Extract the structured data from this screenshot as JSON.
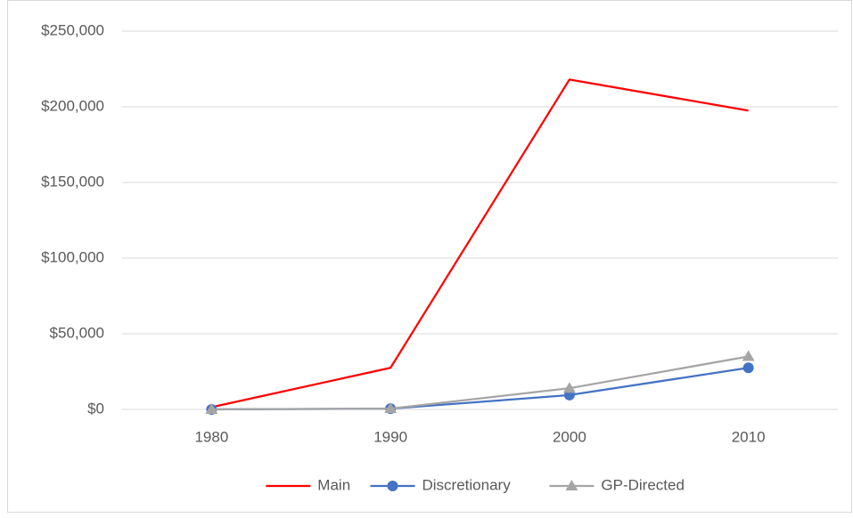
{
  "chart_data": {
    "type": "line",
    "categories": [
      "1980",
      "1990",
      "2000",
      "2010"
    ],
    "series": [
      {
        "name": "Main",
        "color": "#ff0000",
        "marker": "none",
        "values": [
          1500,
          27500,
          218000,
          197500
        ]
      },
      {
        "name": "Discretionary",
        "color": "#4472c4",
        "marker": "circle",
        "values": [
          0,
          500,
          9500,
          27500
        ]
      },
      {
        "name": "GP-Directed",
        "color": "#a5a5a5",
        "marker": "triangle",
        "values": [
          0,
          500,
          14000,
          35000
        ]
      }
    ],
    "ylim": [
      0,
      250000
    ],
    "yticks": [
      {
        "value": 0,
        "label": "$0"
      },
      {
        "value": 50000,
        "label": "$50,000"
      },
      {
        "value": 100000,
        "label": "$100,000"
      },
      {
        "value": 150000,
        "label": "$150,000"
      },
      {
        "value": 200000,
        "label": "$200,000"
      },
      {
        "value": 250000,
        "label": "$250,000"
      }
    ],
    "grid": true,
    "legend": "bottom"
  }
}
